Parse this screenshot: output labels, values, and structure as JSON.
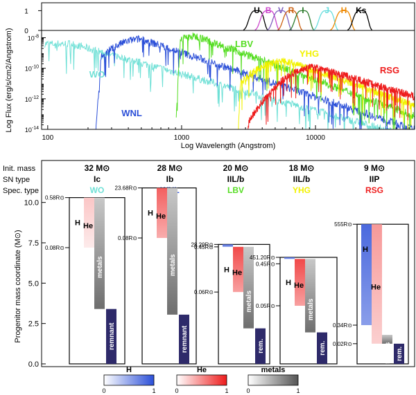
{
  "chart_data": [
    {
      "type": "line",
      "panel": "filter-transmission",
      "ylim": [
        0,
        1.4
      ],
      "yticks": [
        "1",
        "0"
      ],
      "filters": [
        {
          "name": "U",
          "color": "#000000",
          "center_angstrom": 3650
        },
        {
          "name": "B",
          "color": "#cc44cc",
          "center_angstrom": 4450
        },
        {
          "name": "V",
          "color": "#8060c0",
          "center_angstrom": 5510
        },
        {
          "name": "R",
          "color": "#cc6010",
          "center_angstrom": 6580
        },
        {
          "name": "I",
          "color": "#2a7a2a",
          "center_angstrom": 8060
        },
        {
          "name": "J",
          "color": "#66dddd",
          "center_angstrom": 12200
        },
        {
          "name": "H",
          "color": "#ee8800",
          "center_angstrom": 16300
        },
        {
          "name": "Ks",
          "color": "#000000",
          "center_angstrom": 21900
        }
      ]
    },
    {
      "type": "line",
      "panel": "spectra",
      "xlabel": "Log Wavelength (Angstrom)",
      "ylabel": "Log Flux (erg/s/cm2/Angstrom)",
      "xscale": "log",
      "yscale": "log",
      "xlim": [
        90,
        55000
      ],
      "ylim": [
        1e-14,
        3e-08
      ],
      "xticks": [
        "100",
        "1000",
        "10000"
      ],
      "yticks": [
        "10-8",
        "10-10",
        "10-12",
        "10-14"
      ],
      "series": [
        {
          "name": "WO",
          "color": "#6fe0d6",
          "peak_angstrom": 150,
          "min_angstrom": 95
        },
        {
          "name": "WNL",
          "color": "#2b4fd8",
          "peak_angstrom": 500,
          "min_angstrom": 228
        },
        {
          "name": "LBV",
          "color": "#55dd22",
          "peak_angstrom": 1300,
          "min_angstrom": 912
        },
        {
          "name": "YHG",
          "color": "#f2f200",
          "peak_angstrom": 6000,
          "min_angstrom": 2600
        },
        {
          "name": "RSG",
          "color": "#ee1c1c",
          "peak_angstrom": 10000,
          "min_angstrom": 3000
        }
      ]
    },
    {
      "type": "bar",
      "panel": "progenitor-structure",
      "ylabel": "Progenitor mass coordinate (M⊙)",
      "ylim": [
        0,
        11.5
      ],
      "yticks": [
        "10.0",
        "7.5",
        "5.0",
        "2.5",
        "0.0"
      ],
      "row_labels": [
        "Init. mass",
        "SN type",
        "Spec. type"
      ],
      "stars": [
        {
          "mass": "32 M⊙",
          "sn": "Ic",
          "spec": "WO",
          "color": "#6fe0d6",
          "total": 10.3,
          "H": [
            10.3,
            10.3,
            0.05
          ],
          "He": [
            7.2,
            10.3,
            0.15
          ],
          "metals": [
            3.4,
            10.3
          ],
          "remnant": 3.4,
          "remnant_label": "remnant",
          "radii": [
            {
              "label": "0.58R⊙",
              "m": 10.3
            },
            {
              "label": "0.08R⊙",
              "m": 7.2
            }
          ]
        },
        {
          "mass": "28 M⊙",
          "sn": "Ib",
          "spec": "WNL",
          "color": "#2b4fd8",
          "total": 10.9,
          "H": [
            10.9,
            10.9,
            0.05
          ],
          "He": [
            7.8,
            10.9,
            0.6
          ],
          "metals": [
            3.05,
            10.9
          ],
          "remnant": 3.05,
          "remnant_label": "remnant",
          "radii": [
            {
              "label": "23.68R⊙",
              "m": 10.9
            },
            {
              "label": "0.08R⊙",
              "m": 7.8
            }
          ]
        },
        {
          "mass": "20 M⊙",
          "sn": "IIL/b",
          "spec": "LBV",
          "color": "#55dd22",
          "total": 7.4,
          "H": [
            7.25,
            7.4,
            0.3
          ],
          "He": [
            4.45,
            7.25,
            0.7
          ],
          "metals": [
            2.2,
            7.25
          ],
          "remnant": 2.2,
          "remnant_label": "rem.",
          "radii": [
            {
              "label": "28.29R⊙",
              "m": 7.4
            },
            {
              "label": "0.45R⊙",
              "m": 7.25
            },
            {
              "label": "0.06R⊙",
              "m": 4.45
            }
          ]
        },
        {
          "mass": "18 M⊙",
          "sn": "IIL/b",
          "spec": "YHG",
          "color": "#f2f200",
          "total": 6.6,
          "H": [
            6.5,
            6.6,
            0.5
          ],
          "He": [
            3.6,
            6.5,
            0.7
          ],
          "metals": [
            1.95,
            6.5
          ],
          "remnant": 1.95,
          "remnant_label": "rem.",
          "radii": [
            {
              "label": "451.20R⊙",
              "m": 6.6
            },
            {
              "label": "0.45R⊙",
              "m": 6.2
            },
            {
              "label": "0.05R⊙",
              "m": 3.6
            }
          ]
        },
        {
          "mass": "9 M⊙",
          "sn": "IIP",
          "spec": "RSG",
          "color": "#ee1c1c",
          "total": 8.65,
          "H": [
            2.4,
            8.65,
            0.8
          ],
          "He": [
            1.25,
            8.65,
            0.35
          ],
          "metals": [
            1.25,
            1.8
          ],
          "remnant": 1.25,
          "remnant_label": "rem.",
          "radii": [
            {
              "label": "555R⊙",
              "m": 8.65
            },
            {
              "label": "0.34R⊙",
              "m": 2.4
            },
            {
              "label": "0.02R⊙",
              "m": 1.25
            }
          ]
        }
      ],
      "colorbars": [
        {
          "name": "H",
          "from": "#ffffff",
          "to": "#2b4fd8",
          "min": "0",
          "max": "1"
        },
        {
          "name": "He",
          "from": "#ffffff",
          "to": "#ee1c1c",
          "min": "0",
          "max": "1"
        },
        {
          "name": "metals",
          "from": "#ffffff",
          "to": "#555555",
          "min": "0",
          "max": "1"
        }
      ]
    }
  ]
}
